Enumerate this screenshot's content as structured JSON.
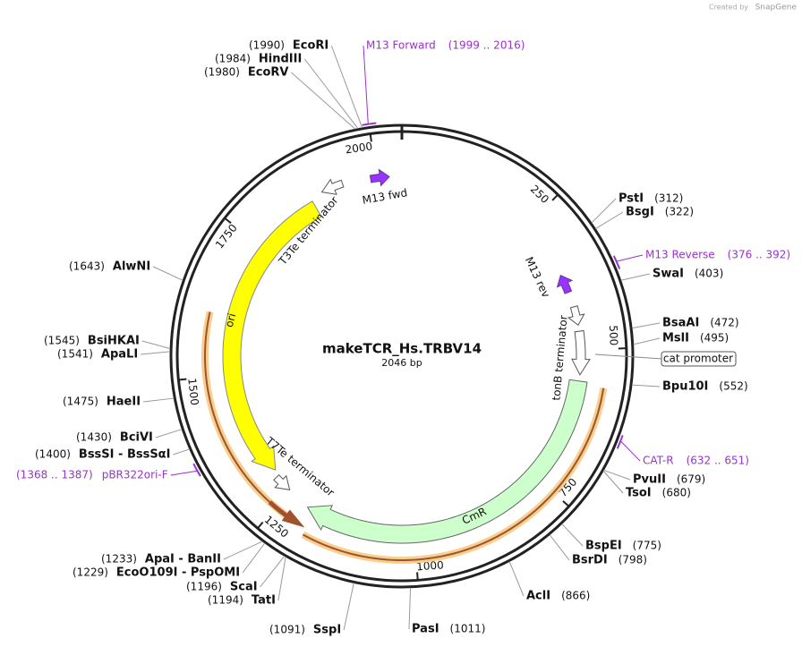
{
  "brand": {
    "created": "Created by",
    "name": "SnapGene"
  },
  "title": "makeTCR_Hs.TRBV14",
  "subtitle": "2046 bp",
  "ticks": [
    250,
    500,
    750,
    1000,
    1250,
    1500,
    1750,
    2000
  ],
  "enzymes": [
    {
      "name": "EcoRI",
      "site": "(1990)"
    },
    {
      "name": "HindIII",
      "site": "(1984)"
    },
    {
      "name": "EcoRV",
      "site": "(1980)"
    },
    {
      "name": "PstI",
      "site": "(312)"
    },
    {
      "name": "BsgI",
      "site": "(322)"
    },
    {
      "name": "SwaI",
      "site": "(403)"
    },
    {
      "name": "BsaAI",
      "site": "(472)"
    },
    {
      "name": "MslI",
      "site": "(495)"
    },
    {
      "name": "Bpu10I",
      "site": "(552)"
    },
    {
      "name": "PvuII",
      "site": "(679)"
    },
    {
      "name": "TsoI",
      "site": "(680)"
    },
    {
      "name": "BspEI",
      "site": "(775)"
    },
    {
      "name": "BsrDI",
      "site": "(798)"
    },
    {
      "name": "AclI",
      "site": "(866)"
    },
    {
      "name": "PasI",
      "site": "(1011)"
    },
    {
      "name": "SspI",
      "site": "(1091)"
    },
    {
      "name": "TatI",
      "site": "(1194)"
    },
    {
      "name": "ScaI",
      "site": "(1196)"
    },
    {
      "name": "EcoO109I  -  PspOMI",
      "site": "(1229)"
    },
    {
      "name": "ApaI  -  BanII",
      "site": "(1233)"
    },
    {
      "name": "BssSI  -  BssSαI",
      "site": "(1400)"
    },
    {
      "name": "BciVI",
      "site": "(1430)"
    },
    {
      "name": "HaeII",
      "site": "(1475)"
    },
    {
      "name": "ApaLI",
      "site": "(1541)"
    },
    {
      "name": "BsiHKAI",
      "site": "(1545)"
    },
    {
      "name": "AlwNI",
      "site": "(1643)"
    }
  ],
  "primers": [
    {
      "name": "M13 Forward",
      "range": "(1999 .. 2016)"
    },
    {
      "name": "M13 Reverse",
      "range": "(376 .. 392)"
    },
    {
      "name": "CAT-R",
      "range": "(632 .. 651)"
    },
    {
      "name": "pBR322ori-F",
      "range": "(1368 .. 1387)"
    }
  ],
  "features": [
    "M13 fwd",
    "M13 rev",
    "tonB terminator",
    "cat promoter",
    "ori",
    "T3Te terminator",
    "T7Te terminator",
    "CmR"
  ]
}
